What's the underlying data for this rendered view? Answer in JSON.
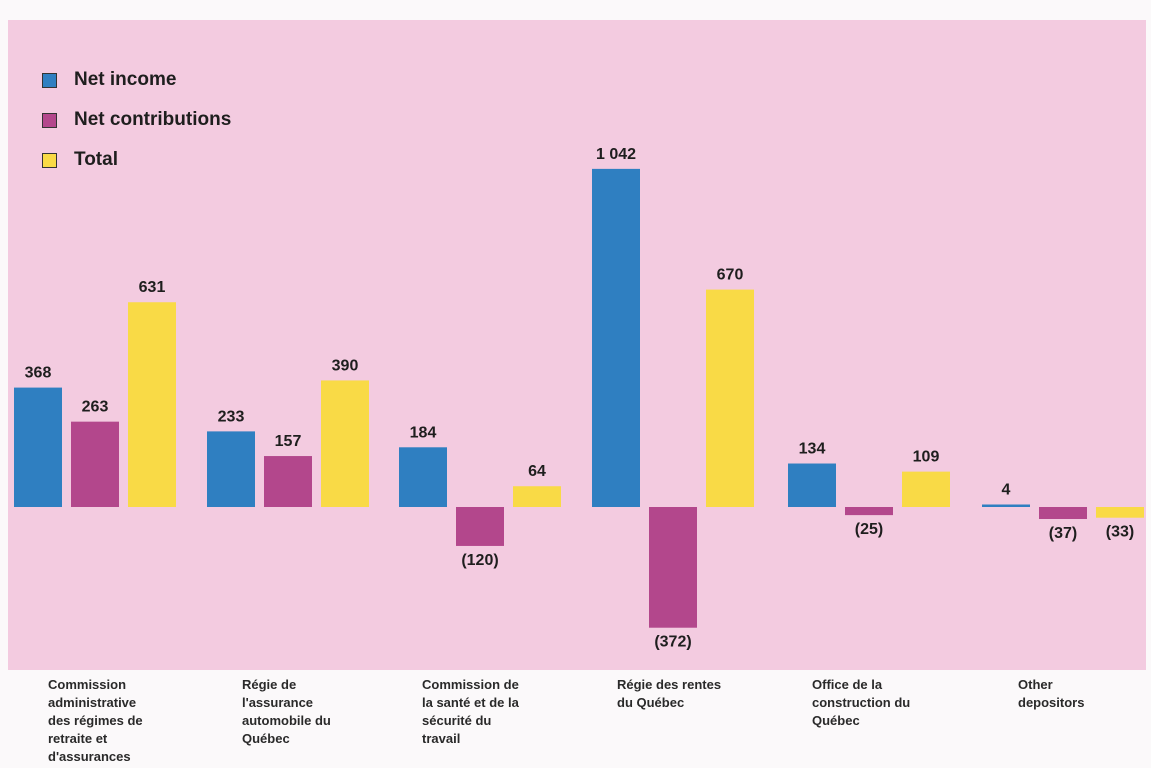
{
  "colors": {
    "net_income": "#2f7fc1",
    "net_contributions": "#b3478c",
    "total": "#f9da46",
    "background": "#f3cbe0"
  },
  "legend": [
    {
      "label": "Net income",
      "color": "#2f7fc1"
    },
    {
      "label": "Net contributions",
      "color": "#b3478c"
    },
    {
      "label": "Total",
      "color": "#f9da46"
    }
  ],
  "chart_data": {
    "type": "bar",
    "categories": [
      "Commission\nadministrative\ndes régimes de\nretraite et\nd'assurances",
      "Régie de\nl'assurance\nautomobile du\nQuébec",
      "Commission de\nla santé et de la\nsécurité du\ntravail",
      "Régie des rentes\ndu Québec",
      "Office de la\nconstruction du\nQuébec",
      "Other\ndepositors"
    ],
    "series": [
      {
        "name": "Net income",
        "values": [
          368,
          233,
          184,
          1042,
          134,
          4
        ],
        "labels": [
          "368",
          "233",
          "184",
          "1 042",
          "134",
          "4"
        ]
      },
      {
        "name": "Net contributions",
        "values": [
          263,
          157,
          -120,
          -372,
          -25,
          -37
        ],
        "labels": [
          "263",
          "157",
          "(120)",
          "(372)",
          "(25)",
          "(37)"
        ]
      },
      {
        "name": "Total",
        "values": [
          631,
          390,
          64,
          670,
          109,
          -33
        ],
        "labels": [
          "631",
          "390",
          "64",
          "670",
          "109",
          "(33)"
        ]
      }
    ],
    "legend_position": "top-left",
    "grid": false
  }
}
